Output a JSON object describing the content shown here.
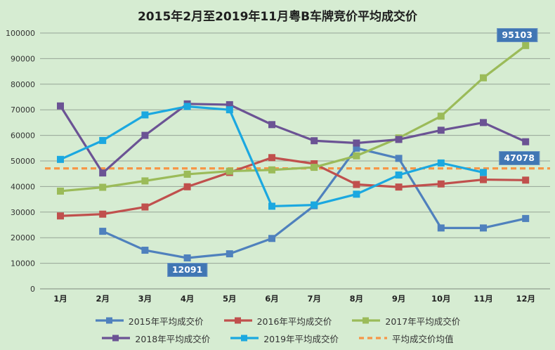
{
  "chart_data": {
    "type": "line",
    "title": "2015年2月至2019年11月粤B车牌竞价平均成交价",
    "xlabel": "",
    "ylabel": "",
    "categories": [
      "1月",
      "2月",
      "3月",
      "4月",
      "5月",
      "6月",
      "7月",
      "8月",
      "9月",
      "10月",
      "11月",
      "12月"
    ],
    "ylim": [
      0,
      100000
    ],
    "ytick_step": 10000,
    "grid": true,
    "legend_position": "bottom-two-rows",
    "series": [
      {
        "key": "2015",
        "name": "2015年平均成交价",
        "color": "#4f81bd",
        "values": [
          null,
          22500,
          15100,
          12091,
          13700,
          19700,
          32500,
          55000,
          51000,
          23800,
          23800,
          27500
        ]
      },
      {
        "key": "2016",
        "name": "2016年平均成交价",
        "color": "#c0504d",
        "values": [
          28500,
          29200,
          32000,
          39900,
          45500,
          51300,
          48900,
          40800,
          39800,
          41000,
          42700,
          42500
        ]
      },
      {
        "key": "2017",
        "name": "2017年平均成交价",
        "color": "#9bbb59",
        "values": [
          38200,
          39700,
          42200,
          44800,
          46000,
          46500,
          47500,
          52000,
          59000,
          67500,
          82500,
          95103
        ]
      },
      {
        "key": "2018",
        "name": "2018年平均成交价",
        "color": "#6b5394",
        "values": [
          71500,
          45300,
          60000,
          72300,
          72000,
          64200,
          57900,
          57000,
          58400,
          62000,
          65000,
          57500
        ]
      },
      {
        "key": "2019",
        "name": "2019年平均成交价",
        "color": "#1ba8e0",
        "values": [
          50600,
          58000,
          68000,
          71300,
          70000,
          32300,
          32800,
          37000,
          44500,
          49200,
          45500,
          null
        ]
      },
      {
        "key": "mean",
        "name": "平均成交价均值",
        "color": "#f79646",
        "style": "dashed",
        "value": 47078
      }
    ],
    "annotations": [
      {
        "text": "12091",
        "value": 12091,
        "x_index": 3,
        "placement": "below"
      },
      {
        "text": "47078",
        "value": 47078,
        "x_index": 10.85,
        "placement": "above"
      },
      {
        "text": "95103",
        "value": 95103,
        "x_index": 10.8,
        "placement": "above"
      }
    ],
    "colors": {
      "background": "#d6ecd2",
      "grid": "#96a496",
      "axis": "#7d8a7d",
      "badge_bg": "#4076b4",
      "badge_text": "#ffffff",
      "title_text": "#1f1f1f"
    }
  }
}
